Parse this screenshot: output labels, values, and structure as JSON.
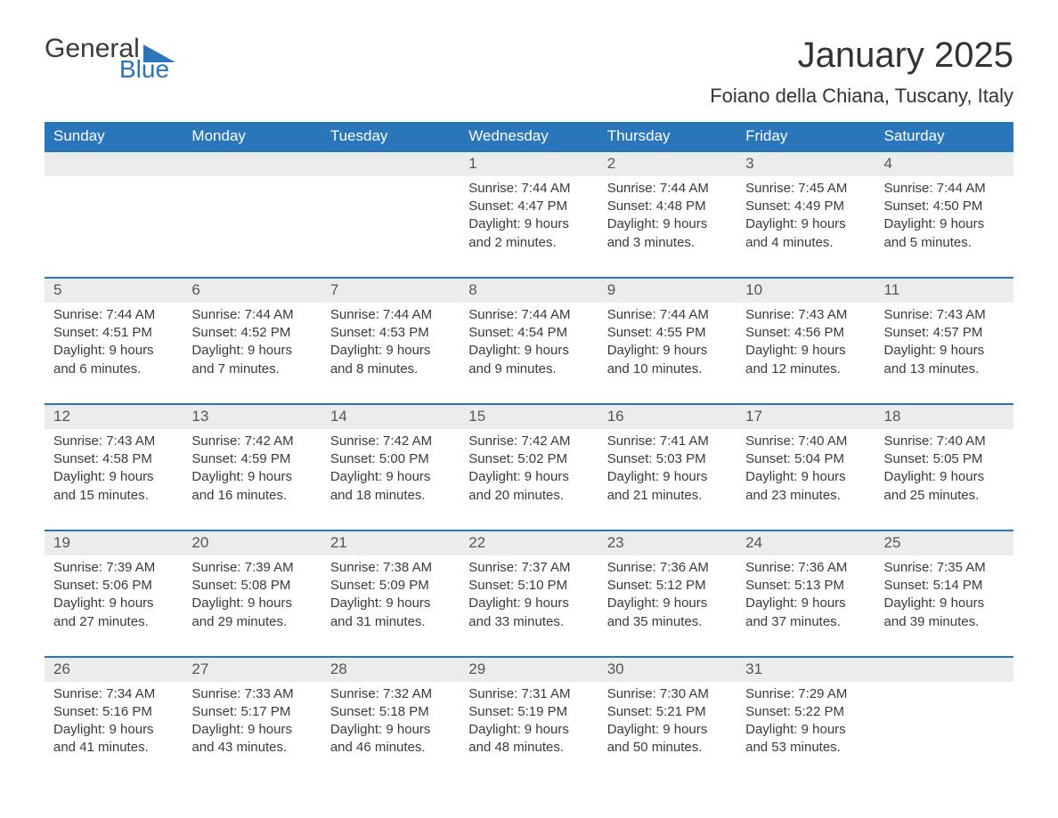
{
  "logo": {
    "word1": "General",
    "word2": "Blue",
    "accent_color": "#2a76bb"
  },
  "title": "January 2025",
  "location": "Foiano della Chiana, Tuscany, Italy",
  "colors": {
    "header_bg": "#2a76bb",
    "header_text": "#ffffff",
    "daynum_bg": "#ececec",
    "daynum_border": "#2a76bb",
    "text": "#3a3a3a",
    "page_bg": "#ffffff"
  },
  "weekdays": [
    "Sunday",
    "Monday",
    "Tuesday",
    "Wednesday",
    "Thursday",
    "Friday",
    "Saturday"
  ],
  "weeks": [
    [
      null,
      null,
      null,
      {
        "n": "1",
        "sr": "Sunrise: 7:44 AM",
        "ss": "Sunset: 4:47 PM",
        "d1": "Daylight: 9 hours",
        "d2": "and 2 minutes."
      },
      {
        "n": "2",
        "sr": "Sunrise: 7:44 AM",
        "ss": "Sunset: 4:48 PM",
        "d1": "Daylight: 9 hours",
        "d2": "and 3 minutes."
      },
      {
        "n": "3",
        "sr": "Sunrise: 7:45 AM",
        "ss": "Sunset: 4:49 PM",
        "d1": "Daylight: 9 hours",
        "d2": "and 4 minutes."
      },
      {
        "n": "4",
        "sr": "Sunrise: 7:44 AM",
        "ss": "Sunset: 4:50 PM",
        "d1": "Daylight: 9 hours",
        "d2": "and 5 minutes."
      }
    ],
    [
      {
        "n": "5",
        "sr": "Sunrise: 7:44 AM",
        "ss": "Sunset: 4:51 PM",
        "d1": "Daylight: 9 hours",
        "d2": "and 6 minutes."
      },
      {
        "n": "6",
        "sr": "Sunrise: 7:44 AM",
        "ss": "Sunset: 4:52 PM",
        "d1": "Daylight: 9 hours",
        "d2": "and 7 minutes."
      },
      {
        "n": "7",
        "sr": "Sunrise: 7:44 AM",
        "ss": "Sunset: 4:53 PM",
        "d1": "Daylight: 9 hours",
        "d2": "and 8 minutes."
      },
      {
        "n": "8",
        "sr": "Sunrise: 7:44 AM",
        "ss": "Sunset: 4:54 PM",
        "d1": "Daylight: 9 hours",
        "d2": "and 9 minutes."
      },
      {
        "n": "9",
        "sr": "Sunrise: 7:44 AM",
        "ss": "Sunset: 4:55 PM",
        "d1": "Daylight: 9 hours",
        "d2": "and 10 minutes."
      },
      {
        "n": "10",
        "sr": "Sunrise: 7:43 AM",
        "ss": "Sunset: 4:56 PM",
        "d1": "Daylight: 9 hours",
        "d2": "and 12 minutes."
      },
      {
        "n": "11",
        "sr": "Sunrise: 7:43 AM",
        "ss": "Sunset: 4:57 PM",
        "d1": "Daylight: 9 hours",
        "d2": "and 13 minutes."
      }
    ],
    [
      {
        "n": "12",
        "sr": "Sunrise: 7:43 AM",
        "ss": "Sunset: 4:58 PM",
        "d1": "Daylight: 9 hours",
        "d2": "and 15 minutes."
      },
      {
        "n": "13",
        "sr": "Sunrise: 7:42 AM",
        "ss": "Sunset: 4:59 PM",
        "d1": "Daylight: 9 hours",
        "d2": "and 16 minutes."
      },
      {
        "n": "14",
        "sr": "Sunrise: 7:42 AM",
        "ss": "Sunset: 5:00 PM",
        "d1": "Daylight: 9 hours",
        "d2": "and 18 minutes."
      },
      {
        "n": "15",
        "sr": "Sunrise: 7:42 AM",
        "ss": "Sunset: 5:02 PM",
        "d1": "Daylight: 9 hours",
        "d2": "and 20 minutes."
      },
      {
        "n": "16",
        "sr": "Sunrise: 7:41 AM",
        "ss": "Sunset: 5:03 PM",
        "d1": "Daylight: 9 hours",
        "d2": "and 21 minutes."
      },
      {
        "n": "17",
        "sr": "Sunrise: 7:40 AM",
        "ss": "Sunset: 5:04 PM",
        "d1": "Daylight: 9 hours",
        "d2": "and 23 minutes."
      },
      {
        "n": "18",
        "sr": "Sunrise: 7:40 AM",
        "ss": "Sunset: 5:05 PM",
        "d1": "Daylight: 9 hours",
        "d2": "and 25 minutes."
      }
    ],
    [
      {
        "n": "19",
        "sr": "Sunrise: 7:39 AM",
        "ss": "Sunset: 5:06 PM",
        "d1": "Daylight: 9 hours",
        "d2": "and 27 minutes."
      },
      {
        "n": "20",
        "sr": "Sunrise: 7:39 AM",
        "ss": "Sunset: 5:08 PM",
        "d1": "Daylight: 9 hours",
        "d2": "and 29 minutes."
      },
      {
        "n": "21",
        "sr": "Sunrise: 7:38 AM",
        "ss": "Sunset: 5:09 PM",
        "d1": "Daylight: 9 hours",
        "d2": "and 31 minutes."
      },
      {
        "n": "22",
        "sr": "Sunrise: 7:37 AM",
        "ss": "Sunset: 5:10 PM",
        "d1": "Daylight: 9 hours",
        "d2": "and 33 minutes."
      },
      {
        "n": "23",
        "sr": "Sunrise: 7:36 AM",
        "ss": "Sunset: 5:12 PM",
        "d1": "Daylight: 9 hours",
        "d2": "and 35 minutes."
      },
      {
        "n": "24",
        "sr": "Sunrise: 7:36 AM",
        "ss": "Sunset: 5:13 PM",
        "d1": "Daylight: 9 hours",
        "d2": "and 37 minutes."
      },
      {
        "n": "25",
        "sr": "Sunrise: 7:35 AM",
        "ss": "Sunset: 5:14 PM",
        "d1": "Daylight: 9 hours",
        "d2": "and 39 minutes."
      }
    ],
    [
      {
        "n": "26",
        "sr": "Sunrise: 7:34 AM",
        "ss": "Sunset: 5:16 PM",
        "d1": "Daylight: 9 hours",
        "d2": "and 41 minutes."
      },
      {
        "n": "27",
        "sr": "Sunrise: 7:33 AM",
        "ss": "Sunset: 5:17 PM",
        "d1": "Daylight: 9 hours",
        "d2": "and 43 minutes."
      },
      {
        "n": "28",
        "sr": "Sunrise: 7:32 AM",
        "ss": "Sunset: 5:18 PM",
        "d1": "Daylight: 9 hours",
        "d2": "and 46 minutes."
      },
      {
        "n": "29",
        "sr": "Sunrise: 7:31 AM",
        "ss": "Sunset: 5:19 PM",
        "d1": "Daylight: 9 hours",
        "d2": "and 48 minutes."
      },
      {
        "n": "30",
        "sr": "Sunrise: 7:30 AM",
        "ss": "Sunset: 5:21 PM",
        "d1": "Daylight: 9 hours",
        "d2": "and 50 minutes."
      },
      {
        "n": "31",
        "sr": "Sunrise: 7:29 AM",
        "ss": "Sunset: 5:22 PM",
        "d1": "Daylight: 9 hours",
        "d2": "and 53 minutes."
      },
      null
    ]
  ]
}
